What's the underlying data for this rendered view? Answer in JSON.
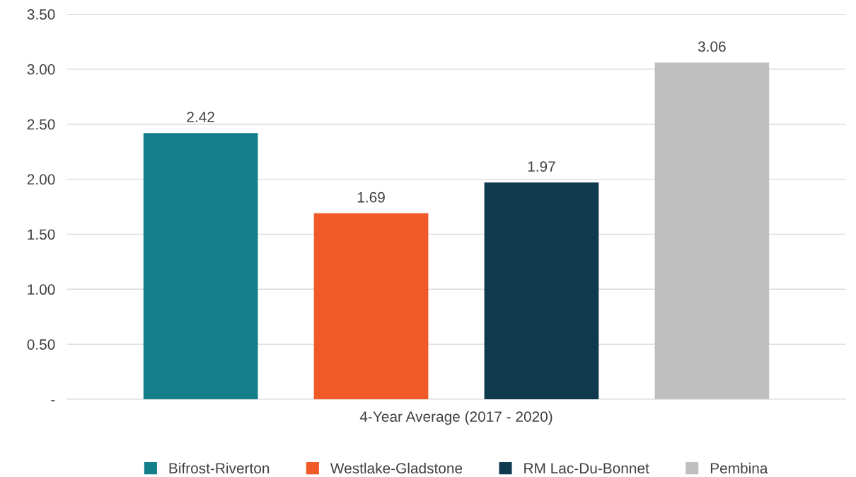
{
  "chart_data": {
    "type": "bar",
    "categories": [
      "4-Year Average (2017 - 2020)"
    ],
    "series": [
      {
        "name": "Bifrost-Riverton",
        "color": "#137f8a",
        "values": [
          2.42
        ]
      },
      {
        "name": "Westlake-Gladstone",
        "color": "#f05a28",
        "values": [
          1.69
        ]
      },
      {
        "name": "RM Lac-Du-Bonnet",
        "color": "#0f3a4e",
        "values": [
          1.97
        ]
      },
      {
        "name": "Pembina",
        "color": "#bfbfbf",
        "values": [
          3.06
        ]
      }
    ],
    "ylim": [
      0,
      3.5
    ],
    "yticks": [
      {
        "value": 0,
        "label": "-"
      },
      {
        "value": 0.5,
        "label": "0.50"
      },
      {
        "value": 1,
        "label": "1.00"
      },
      {
        "value": 1.5,
        "label": "1.50"
      },
      {
        "value": 2,
        "label": "2.00"
      },
      {
        "value": 2.5,
        "label": "2.50"
      },
      {
        "value": 3,
        "label": "3.00"
      },
      {
        "value": 3.5,
        "label": "3.50"
      }
    ],
    "grid": "y",
    "legend": "bottom",
    "data_labels": true
  }
}
